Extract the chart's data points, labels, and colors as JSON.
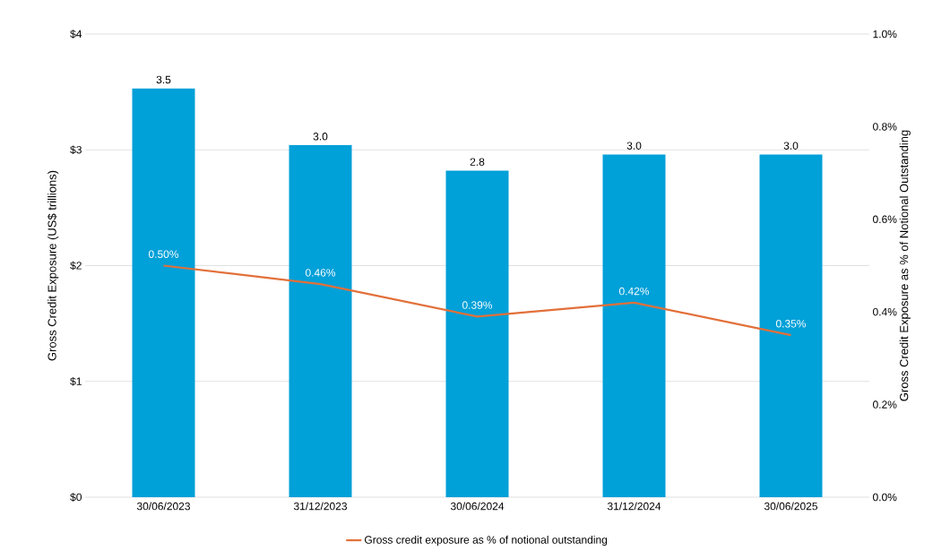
{
  "chart_data": {
    "type": "bar",
    "categories": [
      "30/06/2023",
      "31/12/2023",
      "30/06/2024",
      "31/12/2024",
      "30/06/2025"
    ],
    "series": [
      {
        "color": "#00a0d8",
        "values": [
          3.53,
          3.04,
          2.82,
          2.96,
          2.96
        ],
        "value_labels": [
          "3.5",
          "3.0",
          "2.8",
          "3.0",
          "3.0"
        ]
      },
      {
        "type": "line",
        "axis": "y2",
        "name": "Gross credit exposure as % of notional outstanding",
        "color": "#e2703a",
        "values": [
          0.5,
          0.46,
          0.39,
          0.42,
          0.35
        ],
        "value_labels": [
          "0.50%",
          "0.46%",
          "0.39%",
          "0.42%",
          "0.35%"
        ]
      }
    ],
    "ylabel": "Gross Credit Exposure (US$ trillions)",
    "y2label": "Gross Credit Exposure as % of Notional Outstanding",
    "ylim": [
      0,
      4
    ],
    "yticks": [
      {
        "value": 0,
        "label": "$0"
      },
      {
        "value": 1,
        "label": "$1"
      },
      {
        "value": 2,
        "label": "$2"
      },
      {
        "value": 3,
        "label": "$3"
      },
      {
        "value": 4,
        "label": "$4"
      }
    ],
    "y2lim": [
      0,
      1
    ],
    "y2ticks": [
      {
        "value": 0,
        "label": "0.0%"
      },
      {
        "value": 0.2,
        "label": "0.2%"
      },
      {
        "value": 0.4,
        "label": "0.4%"
      },
      {
        "value": 0.6,
        "label": "0.6%"
      },
      {
        "value": 0.8,
        "label": "0.8%"
      },
      {
        "value": 1,
        "label": "1.0%"
      }
    ],
    "grid": "y",
    "legend": "bottom",
    "marker": "none",
    "line_style": "solid"
  }
}
